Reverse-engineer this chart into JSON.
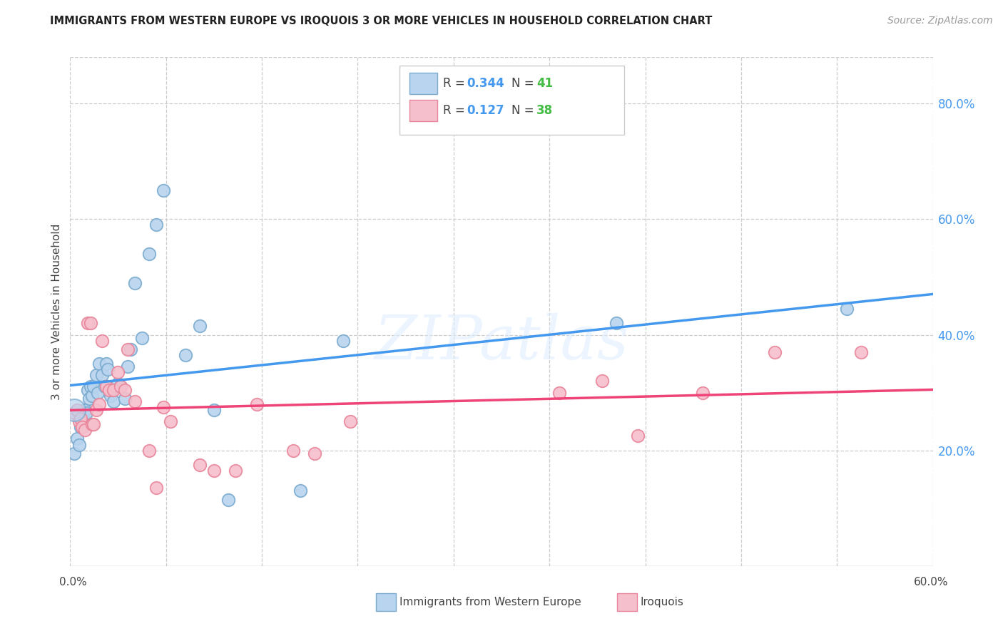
{
  "title": "IMMIGRANTS FROM WESTERN EUROPE VS IROQUOIS 3 OR MORE VEHICLES IN HOUSEHOLD CORRELATION CHART",
  "source": "Source: ZipAtlas.com",
  "ylabel": "3 or more Vehicles in Household",
  "ylabel_right_ticks": [
    "80.0%",
    "60.0%",
    "40.0%",
    "20.0%"
  ],
  "ylabel_right_vals": [
    0.8,
    0.6,
    0.4,
    0.2
  ],
  "xmin": 0.0,
  "xmax": 0.6,
  "ymin": 0.0,
  "ymax": 0.88,
  "legend_R1": "0.344",
  "legend_N1": "41",
  "legend_R2": "0.127",
  "legend_N2": "38",
  "watermark": "ZIPatlas",
  "blue_scatter_x": [
    0.003,
    0.005,
    0.006,
    0.007,
    0.008,
    0.009,
    0.01,
    0.011,
    0.012,
    0.013,
    0.014,
    0.015,
    0.016,
    0.018,
    0.019,
    0.02,
    0.022,
    0.024,
    0.025,
    0.026,
    0.028,
    0.03,
    0.032,
    0.033,
    0.035,
    0.038,
    0.04,
    0.042,
    0.045,
    0.05,
    0.055,
    0.06,
    0.065,
    0.08,
    0.09,
    0.1,
    0.11,
    0.16,
    0.19,
    0.38,
    0.54
  ],
  "blue_scatter_y": [
    0.195,
    0.22,
    0.21,
    0.24,
    0.25,
    0.255,
    0.27,
    0.265,
    0.305,
    0.29,
    0.31,
    0.295,
    0.31,
    0.33,
    0.3,
    0.35,
    0.33,
    0.31,
    0.35,
    0.34,
    0.295,
    0.285,
    0.31,
    0.315,
    0.31,
    0.29,
    0.345,
    0.375,
    0.49,
    0.395,
    0.54,
    0.59,
    0.65,
    0.365,
    0.415,
    0.27,
    0.115,
    0.13,
    0.39,
    0.42,
    0.445
  ],
  "pink_scatter_x": [
    0.003,
    0.005,
    0.006,
    0.007,
    0.008,
    0.01,
    0.012,
    0.014,
    0.015,
    0.016,
    0.018,
    0.02,
    0.022,
    0.025,
    0.027,
    0.03,
    0.033,
    0.035,
    0.038,
    0.04,
    0.045,
    0.055,
    0.06,
    0.065,
    0.07,
    0.09,
    0.1,
    0.115,
    0.13,
    0.155,
    0.17,
    0.195,
    0.34,
    0.37,
    0.395,
    0.44,
    0.49,
    0.55
  ],
  "pink_scatter_y": [
    0.265,
    0.27,
    0.25,
    0.255,
    0.24,
    0.235,
    0.42,
    0.42,
    0.245,
    0.245,
    0.27,
    0.28,
    0.39,
    0.31,
    0.305,
    0.305,
    0.335,
    0.31,
    0.305,
    0.375,
    0.285,
    0.2,
    0.135,
    0.275,
    0.25,
    0.175,
    0.165,
    0.165,
    0.28,
    0.2,
    0.195,
    0.25,
    0.3,
    0.32,
    0.225,
    0.3,
    0.37,
    0.37
  ]
}
